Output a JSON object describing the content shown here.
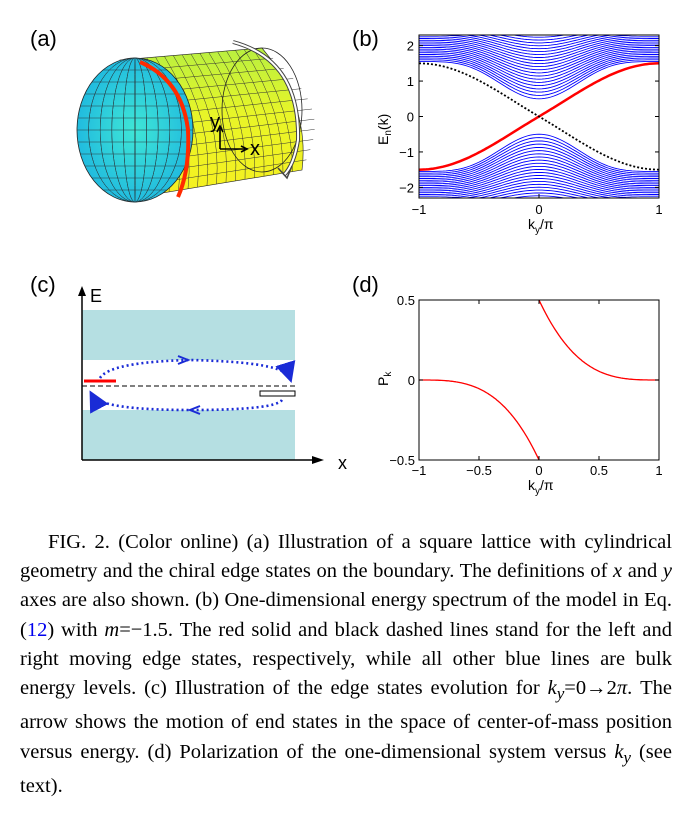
{
  "panels": {
    "a": {
      "label": "(a)",
      "axis_y": "y",
      "axis_x": "x"
    },
    "b": {
      "label": "(b)",
      "ylabel_main": "E",
      "ylabel_sub": "n",
      "ylabel_arg": "(k)",
      "xlabel_main": "k",
      "xlabel_sub": "y",
      "xlabel_tail": "/π",
      "yticks": [
        "2",
        "1",
        "0",
        "−1",
        "−2"
      ],
      "xticks": [
        "−1",
        "0",
        "1"
      ]
    },
    "c": {
      "label": "(c)",
      "ylabel": "E",
      "xlabel": "x"
    },
    "d": {
      "label": "(d)",
      "ylabel_main": "P",
      "ylabel_sub": "k",
      "xlabel_main": "k",
      "xlabel_sub": "y",
      "xlabel_tail": "/π",
      "yticks": [
        "0.5",
        "0",
        "−0.5"
      ],
      "xticks": [
        "−1",
        "−0.5",
        "0",
        "0.5",
        "1"
      ]
    }
  },
  "colors": {
    "bulk_band": "#0000ff",
    "edge_left": "#ff0000",
    "edge_right": "#000000",
    "polarization": "#ff0000",
    "band_fill": "#b5dfe2",
    "loop": "#1a2bd6",
    "ref_link": "#0000ee"
  },
  "chart_data": [
    {
      "type": "line",
      "panel": "b",
      "xlabel": "k_y/π",
      "ylabel": "E_n(k)",
      "xlim": [
        -1,
        1
      ],
      "ylim": [
        -2.3,
        2.3
      ],
      "series": [
        {
          "x": [
            -1,
            -0.5,
            0,
            0.5,
            1
          ],
          "values": [
            -1.5,
            -1.25,
            0,
            1.25,
            1.5
          ]
        },
        {
          "x": [
            -1,
            -0.5,
            0,
            0.5,
            1
          ],
          "values": [
            1.5,
            1.25,
            0,
            -1.25,
            -1.5
          ]
        }
      ]
    },
    {
      "type": "line",
      "panel": "d",
      "xlabel": "k_y/π",
      "ylabel": "P_k",
      "xlim": [
        -1,
        1
      ],
      "ylim": [
        -0.5,
        0.5
      ],
      "series": [
        {
          "x": [
            -1,
            -0.5,
            -0.2,
            -0.05,
            0
          ],
          "values": [
            0,
            -0.03,
            -0.12,
            -0.35,
            -0.5
          ]
        },
        {
          "x": [
            0,
            0.05,
            0.2,
            0.5,
            1
          ],
          "values": [
            0.5,
            0.35,
            0.12,
            0.03,
            0
          ]
        }
      ]
    }
  ],
  "caption": {
    "fig": "FIG. 2.",
    "p1": " (Color online) (a) Illustration of a square lattice with cylindrical geometry and the chiral edge states on the boundary. The definitions of ",
    "x": "x",
    "and": " and ",
    "y": "y",
    "p2": " axes are also shown. (b) One-dimensional energy spectrum of the model in Eq. (",
    "ref": "12",
    "p3": ") with ",
    "m": "m",
    "p4": "=−1.5. The red solid and black dashed lines stand for the left and right moving edge states, respectively, while all other blue lines are bulk energy levels. (c) Illustration of the edge states evolution for ",
    "ky1": "k",
    "ky1sub": "y",
    "p5": "=0→2",
    "pi": "π",
    "p6": ". The arrow shows the motion of end states in the space of center-of-mass position versus energy. (d) Polarization of the one-dimensional system versus ",
    "ky2": "k",
    "ky2sub": "y",
    "p7": " (see text)."
  }
}
